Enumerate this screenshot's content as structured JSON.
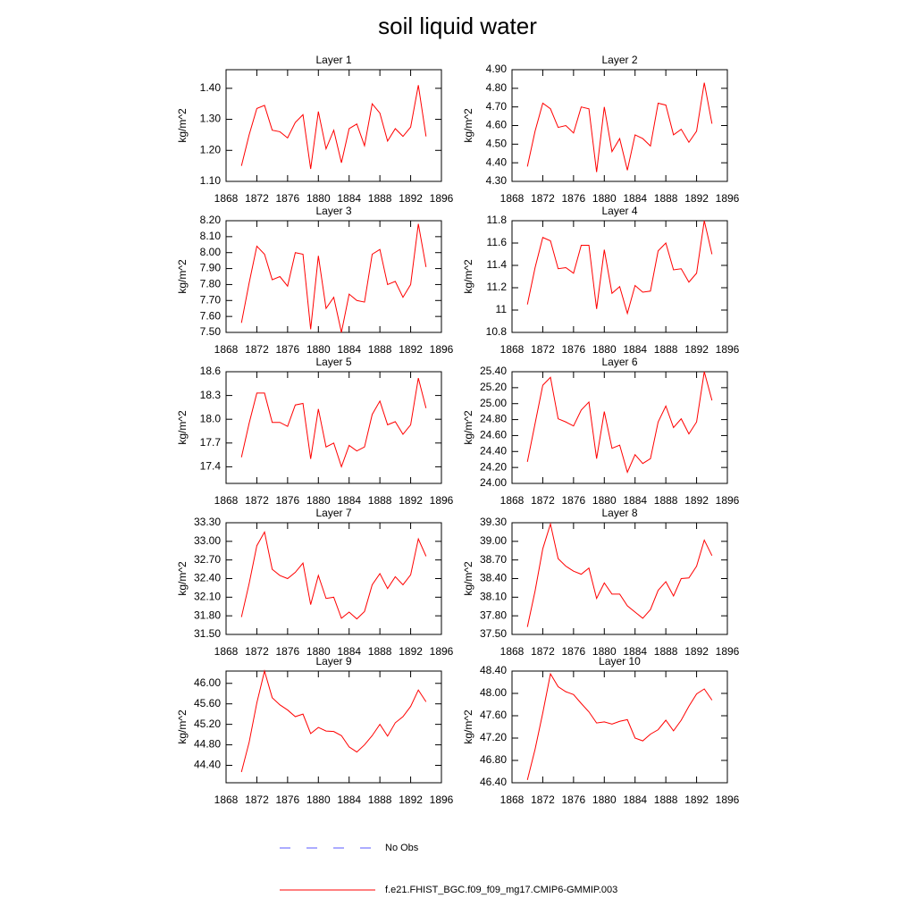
{
  "title": "soil liquid water",
  "legend": [
    {
      "name": "No Obs",
      "color": "#5a5aff",
      "dash": true
    },
    {
      "name": "f.e21.FHIST_BGC.f09_f09_mg17.CMIP6-GMMIP.003",
      "color": "#ff0000"
    }
  ],
  "chart_data": [
    {
      "type": "line",
      "title": "Layer 1",
      "y_label": "kg/m^2",
      "xlim": [
        1868,
        1896
      ],
      "xticks": [
        1868,
        1872,
        1876,
        1880,
        1884,
        1888,
        1892,
        1896
      ],
      "ylim": [
        1.1,
        1.46
      ],
      "yticks": [
        {
          "value": 1.1,
          "label": "1.10"
        },
        {
          "value": 1.2,
          "label": "1.20"
        },
        {
          "value": 1.3,
          "label": "1.30"
        },
        {
          "value": 1.4,
          "label": "1.40"
        }
      ],
      "x": [
        1870,
        1871,
        1872,
        1873,
        1874,
        1875,
        1876,
        1877,
        1878,
        1879,
        1880,
        1881,
        1882,
        1883,
        1884,
        1885,
        1886,
        1887,
        1888,
        1889,
        1890,
        1891,
        1892,
        1893,
        1894
      ],
      "series": [
        {
          "color": "#ff0000",
          "values": [
            1.15,
            1.25,
            1.335,
            1.345,
            1.265,
            1.26,
            1.24,
            1.29,
            1.315,
            1.14,
            1.325,
            1.205,
            1.265,
            1.16,
            1.27,
            1.285,
            1.215,
            1.35,
            1.32,
            1.23,
            1.27,
            1.245,
            1.275,
            1.41,
            1.245
          ]
        }
      ]
    },
    {
      "type": "line",
      "title": "Layer 2",
      "y_label": "kg/m^2",
      "xlim": [
        1868,
        1896
      ],
      "xticks": [
        1868,
        1872,
        1876,
        1880,
        1884,
        1888,
        1892,
        1896
      ],
      "ylim": [
        4.3,
        4.9
      ],
      "yticks": [
        {
          "value": 4.3,
          "label": "4.30"
        },
        {
          "value": 4.4,
          "label": "4.40"
        },
        {
          "value": 4.5,
          "label": "4.50"
        },
        {
          "value": 4.6,
          "label": "4.60"
        },
        {
          "value": 4.7,
          "label": "4.70"
        },
        {
          "value": 4.8,
          "label": "4.80"
        },
        {
          "value": 4.9,
          "label": "4.90"
        }
      ],
      "x": [
        1870,
        1871,
        1872,
        1873,
        1874,
        1875,
        1876,
        1877,
        1878,
        1879,
        1880,
        1881,
        1882,
        1883,
        1884,
        1885,
        1886,
        1887,
        1888,
        1889,
        1890,
        1891,
        1892,
        1893,
        1894
      ],
      "series": [
        {
          "color": "#ff0000",
          "values": [
            4.38,
            4.57,
            4.72,
            4.69,
            4.59,
            4.6,
            4.56,
            4.7,
            4.69,
            4.35,
            4.7,
            4.46,
            4.53,
            4.36,
            4.55,
            4.53,
            4.49,
            4.72,
            4.71,
            4.55,
            4.58,
            4.51,
            4.57,
            4.83,
            4.61
          ]
        }
      ]
    },
    {
      "type": "line",
      "title": "Layer 3",
      "y_label": "kg/m^2",
      "xlim": [
        1868,
        1896
      ],
      "xticks": [
        1868,
        1872,
        1876,
        1880,
        1884,
        1888,
        1892,
        1896
      ],
      "ylim": [
        7.5,
        8.2
      ],
      "yticks": [
        {
          "value": 7.5,
          "label": "7.50"
        },
        {
          "value": 7.6,
          "label": "7.60"
        },
        {
          "value": 7.7,
          "label": "7.70"
        },
        {
          "value": 7.8,
          "label": "7.80"
        },
        {
          "value": 7.9,
          "label": "7.90"
        },
        {
          "value": 8.0,
          "label": "8.00"
        },
        {
          "value": 8.1,
          "label": "8.10"
        },
        {
          "value": 8.2,
          "label": "8.20"
        }
      ],
      "x": [
        1870,
        1871,
        1872,
        1873,
        1874,
        1875,
        1876,
        1877,
        1878,
        1879,
        1880,
        1881,
        1882,
        1883,
        1884,
        1885,
        1886,
        1887,
        1888,
        1889,
        1890,
        1891,
        1892,
        1893,
        1894
      ],
      "series": [
        {
          "color": "#ff0000",
          "values": [
            7.56,
            7.81,
            8.04,
            7.99,
            7.83,
            7.85,
            7.79,
            8.0,
            7.99,
            7.52,
            7.98,
            7.65,
            7.72,
            7.5,
            7.74,
            7.7,
            7.69,
            7.99,
            8.02,
            7.8,
            7.82,
            7.72,
            7.8,
            8.18,
            7.91
          ]
        }
      ]
    },
    {
      "type": "line",
      "title": "Layer 4",
      "y_label": "kg/m^2",
      "xlim": [
        1868,
        1896
      ],
      "xticks": [
        1868,
        1872,
        1876,
        1880,
        1884,
        1888,
        1892,
        1896
      ],
      "ylim": [
        10.8,
        11.8
      ],
      "yticks": [
        10.8,
        11.0,
        {
          "value": 11.2,
          "label": "11.2"
        },
        11.4,
        11.6,
        11.8
      ],
      "x": [
        1870,
        1871,
        1872,
        1873,
        1874,
        1875,
        1876,
        1877,
        1878,
        1879,
        1880,
        1881,
        1882,
        1883,
        1884,
        1885,
        1886,
        1887,
        1888,
        1889,
        1890,
        1891,
        1892,
        1893,
        1894
      ],
      "series": [
        {
          "color": "#ff0000",
          "values": [
            11.05,
            11.38,
            11.65,
            11.62,
            11.37,
            11.38,
            11.33,
            11.58,
            11.58,
            11.01,
            11.54,
            11.15,
            11.21,
            10.97,
            11.22,
            11.16,
            11.17,
            11.53,
            11.6,
            11.36,
            11.37,
            11.25,
            11.33,
            11.8,
            11.5
          ]
        }
      ]
    },
    {
      "type": "line",
      "title": "Layer 5",
      "y_label": "kg/m^2",
      "xlim": [
        1868,
        1896
      ],
      "xticks": [
        1868,
        1872,
        1876,
        1880,
        1884,
        1888,
        1892,
        1896
      ],
      "ylim": [
        17.19,
        18.6
      ],
      "yticks": [
        17.4,
        17.7,
        {
          "value": 18.0,
          "label": "18.0"
        },
        18.3,
        18.6
      ],
      "x": [
        1870,
        1871,
        1872,
        1873,
        1874,
        1875,
        1876,
        1877,
        1878,
        1879,
        1880,
        1881,
        1882,
        1883,
        1884,
        1885,
        1886,
        1887,
        1888,
        1889,
        1890,
        1891,
        1892,
        1893,
        1894
      ],
      "series": [
        {
          "color": "#ff0000",
          "values": [
            17.52,
            17.95,
            18.33,
            18.33,
            17.96,
            17.96,
            17.91,
            18.18,
            18.2,
            17.5,
            18.13,
            17.65,
            17.7,
            17.4,
            17.67,
            17.6,
            17.65,
            18.06,
            18.23,
            17.93,
            17.97,
            17.81,
            17.93,
            18.52,
            18.14
          ]
        }
      ]
    },
    {
      "type": "line",
      "title": "Layer 6",
      "y_label": "kg/m^2",
      "xlim": [
        1868,
        1896
      ],
      "xticks": [
        1868,
        1872,
        1876,
        1880,
        1884,
        1888,
        1892,
        1896
      ],
      "ylim": [
        24.0,
        25.4
      ],
      "yticks": [
        {
          "value": 24.0,
          "label": "24.00"
        },
        {
          "value": 24.2,
          "label": "24.20"
        },
        {
          "value": 24.4,
          "label": "24.40"
        },
        {
          "value": 24.6,
          "label": "24.60"
        },
        {
          "value": 24.8,
          "label": "24.80"
        },
        {
          "value": 25.0,
          "label": "25.00"
        },
        {
          "value": 25.2,
          "label": "25.20"
        },
        {
          "value": 25.4,
          "label": "25.40"
        }
      ],
      "x": [
        1870,
        1871,
        1872,
        1873,
        1874,
        1875,
        1876,
        1877,
        1878,
        1879,
        1880,
        1881,
        1882,
        1883,
        1884,
        1885,
        1886,
        1887,
        1888,
        1889,
        1890,
        1891,
        1892,
        1893,
        1894
      ],
      "series": [
        {
          "color": "#ff0000",
          "values": [
            24.27,
            24.75,
            25.23,
            25.33,
            24.81,
            24.77,
            24.72,
            24.92,
            25.02,
            24.31,
            24.9,
            24.44,
            24.48,
            24.14,
            24.36,
            24.25,
            24.31,
            24.77,
            24.97,
            24.7,
            24.81,
            24.62,
            24.77,
            25.4,
            25.04
          ]
        }
      ]
    },
    {
      "type": "line",
      "title": "Layer 7",
      "y_label": "kg/m^2",
      "xlim": [
        1868,
        1896
      ],
      "xticks": [
        1868,
        1872,
        1876,
        1880,
        1884,
        1888,
        1892,
        1896
      ],
      "ylim": [
        31.5,
        33.3
      ],
      "yticks": [
        {
          "value": 31.5,
          "label": "31.50"
        },
        {
          "value": 31.8,
          "label": "31.80"
        },
        {
          "value": 32.1,
          "label": "32.10"
        },
        {
          "value": 32.4,
          "label": "32.40"
        },
        {
          "value": 32.7,
          "label": "32.70"
        },
        {
          "value": 33.0,
          "label": "33.00"
        },
        {
          "value": 33.3,
          "label": "33.30"
        }
      ],
      "x": [
        1870,
        1871,
        1872,
        1873,
        1874,
        1875,
        1876,
        1877,
        1878,
        1879,
        1880,
        1881,
        1882,
        1883,
        1884,
        1885,
        1886,
        1887,
        1888,
        1889,
        1890,
        1891,
        1892,
        1893,
        1894
      ],
      "series": [
        {
          "color": "#ff0000",
          "values": [
            31.78,
            32.32,
            32.93,
            33.15,
            32.55,
            32.45,
            32.4,
            32.5,
            32.65,
            31.98,
            32.45,
            32.08,
            32.1,
            31.76,
            31.86,
            31.75,
            31.87,
            32.3,
            32.48,
            32.24,
            32.43,
            32.3,
            32.46,
            33.04,
            32.76
          ]
        }
      ]
    },
    {
      "type": "line",
      "title": "Layer 8",
      "y_label": "kg/m^2",
      "xlim": [
        1868,
        1896
      ],
      "xticks": [
        1868,
        1872,
        1876,
        1880,
        1884,
        1888,
        1892,
        1896
      ],
      "ylim": [
        37.5,
        39.3
      ],
      "yticks": [
        {
          "value": 37.5,
          "label": "37.50"
        },
        {
          "value": 37.8,
          "label": "37.80"
        },
        {
          "value": 38.1,
          "label": "38.10"
        },
        {
          "value": 38.4,
          "label": "38.40"
        },
        {
          "value": 38.7,
          "label": "38.70"
        },
        {
          "value": 39.0,
          "label": "39.00"
        },
        {
          "value": 39.3,
          "label": "39.30"
        }
      ],
      "x": [
        1870,
        1871,
        1872,
        1873,
        1874,
        1875,
        1876,
        1877,
        1878,
        1879,
        1880,
        1881,
        1882,
        1883,
        1884,
        1885,
        1886,
        1887,
        1888,
        1889,
        1890,
        1891,
        1892,
        1893,
        1894
      ],
      "series": [
        {
          "color": "#ff0000",
          "values": [
            37.62,
            38.2,
            38.88,
            39.28,
            38.72,
            38.6,
            38.52,
            38.47,
            38.57,
            38.08,
            38.33,
            38.15,
            38.15,
            37.96,
            37.86,
            37.76,
            37.9,
            38.21,
            38.35,
            38.12,
            38.4,
            38.41,
            38.6,
            39.02,
            38.77
          ]
        }
      ]
    },
    {
      "type": "line",
      "title": "Layer 9",
      "y_label": "kg/m^2",
      "xlim": [
        1868,
        1896
      ],
      "xticks": [
        1868,
        1872,
        1876,
        1880,
        1884,
        1888,
        1892,
        1896
      ],
      "ylim": [
        44.06,
        46.24
      ],
      "yticks": [
        {
          "value": 44.4,
          "label": "44.40"
        },
        {
          "value": 44.8,
          "label": "44.80"
        },
        {
          "value": 45.2,
          "label": "45.20"
        },
        {
          "value": 45.6,
          "label": "45.60"
        },
        {
          "value": 46.0,
          "label": "46.00"
        }
      ],
      "x": [
        1870,
        1871,
        1872,
        1873,
        1874,
        1875,
        1876,
        1877,
        1878,
        1879,
        1880,
        1881,
        1882,
        1883,
        1884,
        1885,
        1886,
        1887,
        1888,
        1889,
        1890,
        1891,
        1892,
        1893,
        1894
      ],
      "series": [
        {
          "color": "#ff0000",
          "values": [
            44.27,
            44.85,
            45.62,
            46.24,
            45.72,
            45.58,
            45.48,
            45.35,
            45.4,
            45.02,
            45.14,
            45.07,
            45.06,
            44.98,
            44.76,
            44.66,
            44.8,
            44.98,
            45.2,
            44.97,
            45.23,
            45.35,
            45.55,
            45.87,
            45.64
          ]
        }
      ]
    },
    {
      "type": "line",
      "title": "Layer 10",
      "y_label": "kg/m^2",
      "xlim": [
        1868,
        1896
      ],
      "xticks": [
        1868,
        1872,
        1876,
        1880,
        1884,
        1888,
        1892,
        1896
      ],
      "ylim": [
        46.4,
        48.4
      ],
      "yticks": [
        {
          "value": 46.4,
          "label": "46.40"
        },
        {
          "value": 46.8,
          "label": "46.80"
        },
        {
          "value": 47.2,
          "label": "47.20"
        },
        {
          "value": 47.6,
          "label": "47.60"
        },
        {
          "value": 48.0,
          "label": "48.00"
        },
        {
          "value": 48.4,
          "label": "48.40"
        }
      ],
      "x": [
        1870,
        1871,
        1872,
        1873,
        1874,
        1875,
        1876,
        1877,
        1878,
        1879,
        1880,
        1881,
        1882,
        1883,
        1884,
        1885,
        1886,
        1887,
        1888,
        1889,
        1890,
        1891,
        1892,
        1893,
        1894
      ],
      "series": [
        {
          "color": "#ff0000",
          "values": [
            46.45,
            47.0,
            47.65,
            48.35,
            48.12,
            48.03,
            47.98,
            47.82,
            47.67,
            47.47,
            47.49,
            47.45,
            47.5,
            47.53,
            47.2,
            47.15,
            47.27,
            47.35,
            47.52,
            47.33,
            47.52,
            47.77,
            47.99,
            48.08,
            47.88
          ]
        }
      ]
    }
  ]
}
